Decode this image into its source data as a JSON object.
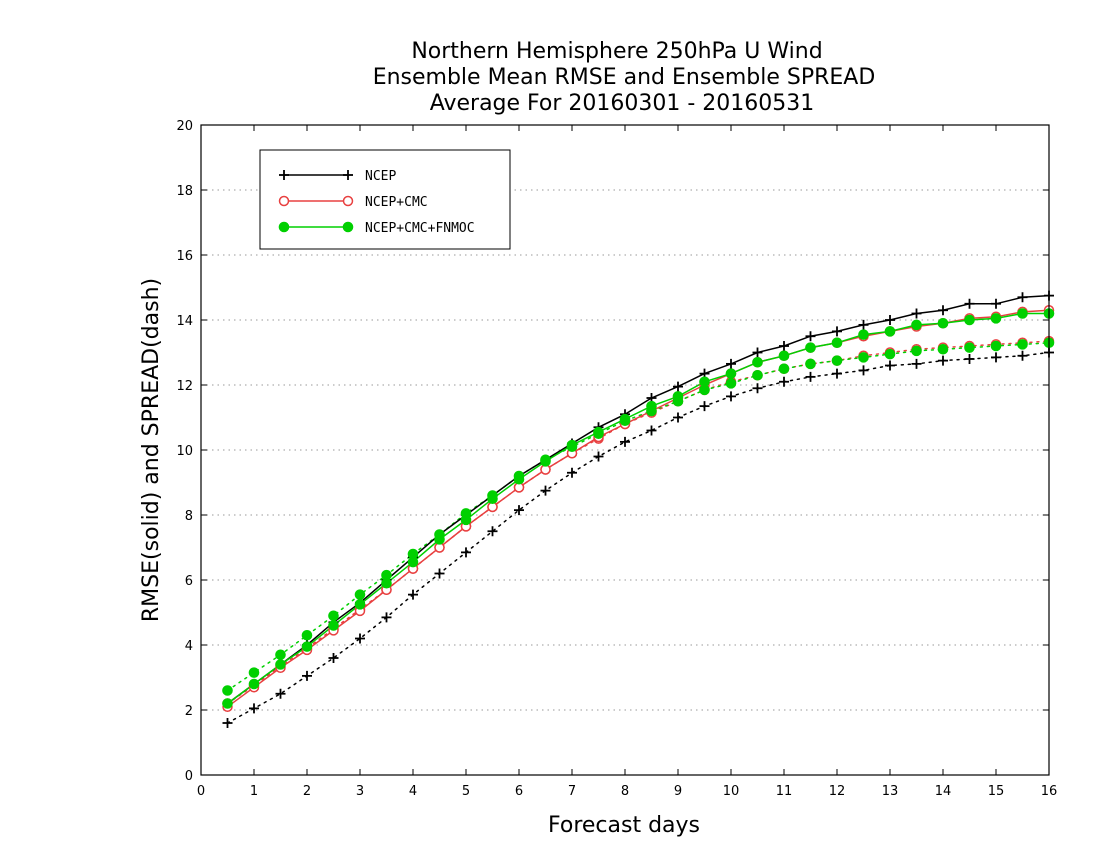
{
  "chart_data": {
    "type": "line",
    "title": [
      "Northern Hemisphere 250hPa U Wind",
      "Ensemble Mean RMSE and Ensemble SPREAD",
      "Average For 20160301 - 20160531"
    ],
    "xlabel": "Forecast days",
    "ylabel": "RMSE(solid) and SPREAD(dash)",
    "xlim": [
      0,
      16
    ],
    "ylim": [
      0,
      20
    ],
    "xticks": [
      0,
      1,
      2,
      3,
      4,
      5,
      6,
      7,
      8,
      9,
      10,
      11,
      12,
      13,
      14,
      15,
      16
    ],
    "yticks": [
      0,
      2,
      4,
      6,
      8,
      10,
      12,
      14,
      16,
      18,
      20
    ],
    "grid": "horizontal dotted",
    "legend_position": "top-left",
    "x": [
      0.5,
      1,
      1.5,
      2,
      2.5,
      3,
      3.5,
      4,
      4.5,
      5,
      5.5,
      6,
      6.5,
      7,
      7.5,
      8,
      8.5,
      9,
      9.5,
      10,
      10.5,
      11,
      11.5,
      12,
      12.5,
      13,
      13.5,
      14,
      14.5,
      15,
      15.5,
      16
    ],
    "series": [
      {
        "name": "NCEP",
        "color": "#000000",
        "marker": "plus",
        "rmse": [
          2.2,
          2.8,
          3.4,
          4.0,
          4.7,
          5.3,
          6.0,
          6.7,
          7.4,
          8.0,
          8.6,
          9.2,
          9.7,
          10.2,
          10.7,
          11.1,
          11.6,
          11.95,
          12.35,
          12.65,
          13.0,
          13.2,
          13.5,
          13.65,
          13.85,
          14.0,
          14.2,
          14.3,
          14.5,
          14.5,
          14.7,
          14.75
        ],
        "spread": [
          1.6,
          2.05,
          2.5,
          3.05,
          3.6,
          4.2,
          4.85,
          5.55,
          6.2,
          6.85,
          7.5,
          8.15,
          8.75,
          9.3,
          9.8,
          10.25,
          10.6,
          11.0,
          11.35,
          11.65,
          11.9,
          12.1,
          12.25,
          12.35,
          12.45,
          12.6,
          12.65,
          12.75,
          12.8,
          12.85,
          12.9,
          13.0
        ]
      },
      {
        "name": "NCEP+CMC",
        "color": "#e84040",
        "marker": "open-circle",
        "rmse": [
          2.1,
          2.7,
          3.3,
          3.85,
          4.45,
          5.05,
          5.7,
          6.35,
          7.0,
          7.65,
          8.25,
          8.85,
          9.4,
          9.9,
          10.4,
          10.8,
          11.2,
          11.6,
          12.0,
          12.35,
          12.7,
          12.9,
          13.15,
          13.3,
          13.5,
          13.65,
          13.8,
          13.9,
          14.05,
          14.1,
          14.25,
          14.3
        ],
        "spread": [
          2.2,
          2.75,
          3.35,
          3.9,
          4.5,
          5.1,
          5.7,
          6.35,
          7.0,
          7.65,
          8.25,
          8.85,
          9.4,
          9.9,
          10.35,
          10.8,
          11.15,
          11.5,
          11.85,
          12.1,
          12.3,
          12.5,
          12.65,
          12.75,
          12.9,
          13.0,
          13.1,
          13.15,
          13.2,
          13.25,
          13.3,
          13.35
        ]
      },
      {
        "name": "NCEP+CMC+FNMOC",
        "color": "#00d000",
        "marker": "filled-circle",
        "rmse": [
          2.2,
          2.8,
          3.4,
          3.95,
          4.6,
          5.25,
          5.9,
          6.55,
          7.25,
          7.85,
          8.5,
          9.1,
          9.65,
          10.15,
          10.55,
          10.95,
          11.35,
          11.65,
          12.1,
          12.35,
          12.7,
          12.9,
          13.15,
          13.3,
          13.55,
          13.65,
          13.85,
          13.9,
          14.0,
          14.05,
          14.2,
          14.2
        ],
        "spread": [
          2.6,
          3.15,
          3.7,
          4.3,
          4.9,
          5.55,
          6.15,
          6.8,
          7.4,
          8.05,
          8.6,
          9.2,
          9.7,
          10.1,
          10.5,
          10.9,
          11.2,
          11.5,
          11.85,
          12.05,
          12.3,
          12.5,
          12.65,
          12.75,
          12.85,
          12.95,
          13.05,
          13.1,
          13.15,
          13.2,
          13.25,
          13.3
        ]
      }
    ]
  }
}
